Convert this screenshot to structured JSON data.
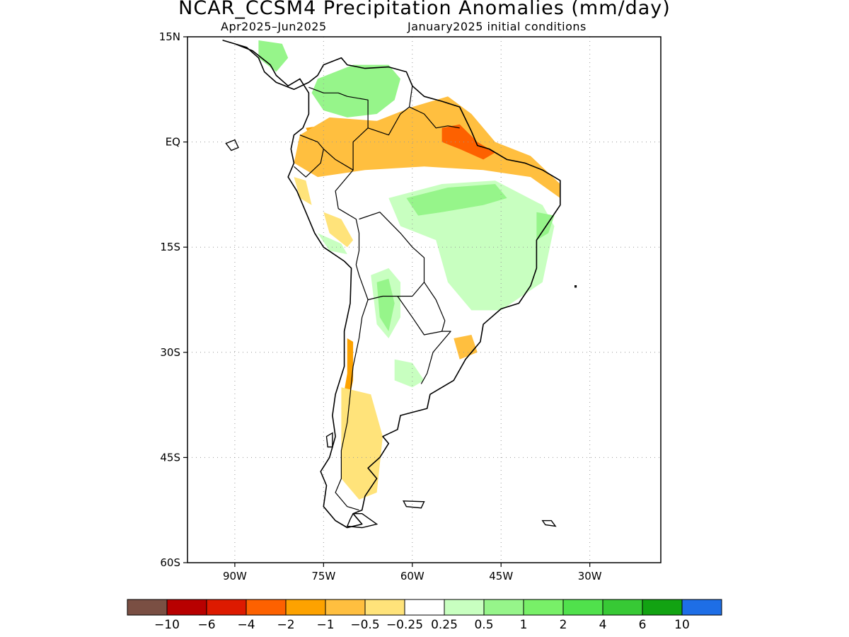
{
  "title": "NCAR_CCSM4 Precipitation Anomalies (mm/day)",
  "subtitle_left": "Apr2025–Jun2025",
  "subtitle_right": "January2025 initial conditions",
  "map": {
    "lon_range": [
      -98,
      -18
    ],
    "lat_range": [
      -60,
      15
    ],
    "grid": "dotted",
    "lat_ticks": [
      {
        "value": 15,
        "label": "15N"
      },
      {
        "value": 0,
        "label": "EQ"
      },
      {
        "value": -15,
        "label": "15S"
      },
      {
        "value": -30,
        "label": "30S"
      },
      {
        "value": -45,
        "label": "45S"
      },
      {
        "value": -60,
        "label": "60S"
      }
    ],
    "lon_ticks": [
      {
        "value": -90,
        "label": "90W"
      },
      {
        "value": -75,
        "label": "75W"
      },
      {
        "value": -60,
        "label": "60W"
      },
      {
        "value": -45,
        "label": "45W"
      },
      {
        "value": -30,
        "label": "30W"
      }
    ]
  },
  "colorbar": {
    "colors": [
      "#7a4f43",
      "#b80000",
      "#dd1a00",
      "#fd6100",
      "#fda200",
      "#ffbf3f",
      "#ffe37a",
      "#ffffff",
      "#c8ffc0",
      "#96f58a",
      "#78f068",
      "#50e14c",
      "#37c935",
      "#12a312",
      "#1e6ee6"
    ],
    "labels": [
      "−10",
      "−6",
      "−4",
      "−2",
      "−1",
      "−0.5",
      "−0.25",
      "0.25",
      "0.5",
      "1",
      "2",
      "4",
      "6",
      "10"
    ]
  },
  "anomaly_regions": [
    {
      "name": "venezuela-colombia-wet",
      "level": "2",
      "color": "#50e14c",
      "points": [
        [
          -75,
          8
        ],
        [
          -72,
          10
        ],
        [
          -68,
          10.5
        ],
        [
          -64,
          10
        ],
        [
          -63,
          7.5
        ],
        [
          -66,
          5
        ],
        [
          -70,
          4
        ],
        [
          -74,
          5
        ],
        [
          -76,
          6.5
        ]
      ]
    },
    {
      "name": "venezuela-moderate-wet",
      "level": "1",
      "color": "#96f58a",
      "points": [
        [
          -76,
          9
        ],
        [
          -70,
          11
        ],
        [
          -64,
          11
        ],
        [
          -62,
          9
        ],
        [
          -63,
          6
        ],
        [
          -66,
          4
        ],
        [
          -71,
          3.5
        ],
        [
          -75,
          4.5
        ],
        [
          -77,
          7
        ]
      ]
    },
    {
      "name": "central-america-wet",
      "level": "1",
      "color": "#96f58a",
      "points": [
        [
          -86,
          14.5
        ],
        [
          -82,
          14
        ],
        [
          -81,
          12
        ],
        [
          -83,
          10
        ],
        [
          -86,
          12
        ]
      ]
    },
    {
      "name": "amazon-dry",
      "level": "-1",
      "color": "#fda200",
      "points": [
        [
          -78,
          2
        ],
        [
          -70,
          3
        ],
        [
          -62,
          3
        ],
        [
          -56,
          6
        ],
        [
          -52,
          4.5
        ],
        [
          -49,
          1
        ],
        [
          -44,
          -2
        ],
        [
          -38,
          -4
        ],
        [
          -37,
          -5
        ],
        [
          -44,
          -4
        ],
        [
          -52,
          -2
        ],
        [
          -60,
          -2.5
        ],
        [
          -68,
          -3
        ],
        [
          -75,
          -3
        ]
      ]
    },
    {
      "name": "amazon-mild-dry",
      "level": "-0.5",
      "color": "#ffbf3f",
      "points": [
        [
          -79,
          1
        ],
        [
          -74,
          3.5
        ],
        [
          -66,
          3
        ],
        [
          -60,
          5
        ],
        [
          -54,
          6.5
        ],
        [
          -50,
          4
        ],
        [
          -46,
          0
        ],
        [
          -40,
          -2
        ],
        [
          -35,
          -6
        ],
        [
          -35,
          -8
        ],
        [
          -40,
          -5
        ],
        [
          -48,
          -4
        ],
        [
          -58,
          -3.5
        ],
        [
          -68,
          -4
        ],
        [
          -76,
          -5
        ],
        [
          -80,
          -3
        ]
      ]
    },
    {
      "name": "para-strong-dry",
      "level": "-4",
      "color": "#fd6100",
      "points": [
        [
          -55,
          2
        ],
        [
          -52,
          2.5
        ],
        [
          -49,
          0
        ],
        [
          -46,
          -1.5
        ],
        [
          -48,
          -2.5
        ],
        [
          -52,
          -1
        ],
        [
          -55,
          0
        ]
      ]
    },
    {
      "name": "brazil-interior-wet",
      "level": "0.5",
      "color": "#c8ffc0",
      "points": [
        [
          -64,
          -8
        ],
        [
          -55,
          -6
        ],
        [
          -46,
          -5.5
        ],
        [
          -38,
          -9
        ],
        [
          -36,
          -12
        ],
        [
          -38,
          -20
        ],
        [
          -45,
          -24
        ],
        [
          -50,
          -24
        ],
        [
          -54,
          -20
        ],
        [
          -56,
          -14
        ],
        [
          -62,
          -12
        ]
      ]
    },
    {
      "name": "brazil-core-wet",
      "level": "1",
      "color": "#96f58a",
      "points": [
        [
          -61,
          -8
        ],
        [
          -54,
          -6.5
        ],
        [
          -46,
          -6
        ],
        [
          -44,
          -8
        ],
        [
          -48,
          -9
        ],
        [
          -55,
          -10
        ],
        [
          -59,
          -10.5
        ]
      ]
    },
    {
      "name": "brazil-east-wet",
      "level": "1",
      "color": "#96f58a",
      "points": [
        [
          -39,
          -10
        ],
        [
          -36,
          -10.5
        ],
        [
          -37,
          -13
        ],
        [
          -39,
          -14
        ]
      ]
    },
    {
      "name": "bolivia-wet",
      "level": "0.5",
      "color": "#c8ffc0",
      "points": [
        [
          -67,
          -19
        ],
        [
          -64,
          -18
        ],
        [
          -62,
          -20
        ],
        [
          -62,
          -25
        ],
        [
          -64,
          -28
        ],
        [
          -66,
          -26
        ]
      ]
    },
    {
      "name": "chaco-wet",
      "level": "1",
      "color": "#96f58a",
      "points": [
        [
          -66,
          -20
        ],
        [
          -64,
          -19.5
        ],
        [
          -63,
          -23
        ],
        [
          -64,
          -27
        ],
        [
          -65.5,
          -25
        ]
      ]
    },
    {
      "name": "peru-mild-dry",
      "level": "-0.5",
      "color": "#ffe37a",
      "points": [
        [
          -75,
          -10
        ],
        [
          -72,
          -11
        ],
        [
          -70,
          -14
        ],
        [
          -71,
          -15
        ],
        [
          -74,
          -13
        ]
      ]
    },
    {
      "name": "peru-coast-dry",
      "level": "-0.5",
      "color": "#ffe37a",
      "points": [
        [
          -80,
          -5
        ],
        [
          -78,
          -5.5
        ],
        [
          -77,
          -9
        ],
        [
          -79,
          -8
        ]
      ]
    },
    {
      "name": "peru-wet",
      "level": "0.5",
      "color": "#c8ffc0",
      "points": [
        [
          -76,
          -13
        ],
        [
          -72,
          -14.5
        ],
        [
          -71,
          -16
        ],
        [
          -74,
          -15.5
        ]
      ]
    },
    {
      "name": "southern-brazil-dry",
      "level": "-0.5",
      "color": "#ffbf3f",
      "points": [
        [
          -53,
          -28
        ],
        [
          -50,
          -27.5
        ],
        [
          -49,
          -30
        ],
        [
          -52,
          -31
        ]
      ]
    },
    {
      "name": "pampas-wet",
      "level": "0.5",
      "color": "#c8ffc0",
      "points": [
        [
          -63,
          -31
        ],
        [
          -60,
          -31.5
        ],
        [
          -58,
          -34
        ],
        [
          -60,
          -35
        ],
        [
          -63,
          -34
        ]
      ]
    },
    {
      "name": "chile-dry",
      "level": "-1",
      "color": "#fda200",
      "points": [
        [
          -71,
          -28
        ],
        [
          -70,
          -28.5
        ],
        [
          -70,
          -34
        ],
        [
          -71.5,
          -40
        ],
        [
          -72,
          -38
        ],
        [
          -71,
          -33
        ]
      ]
    },
    {
      "name": "patagonia-mild-dry",
      "level": "-0.5",
      "color": "#ffbf3f",
      "points": [
        [
          -71,
          -37
        ],
        [
          -68,
          -39
        ],
        [
          -67,
          -46
        ],
        [
          -68,
          -50
        ],
        [
          -71,
          -49
        ],
        [
          -72,
          -43
        ]
      ]
    },
    {
      "name": "patagonia-dry",
      "level": "-0.25",
      "color": "#ffe37a",
      "points": [
        [
          -72,
          -35
        ],
        [
          -67,
          -36
        ],
        [
          -65,
          -42
        ],
        [
          -66,
          -50
        ],
        [
          -69,
          -51
        ],
        [
          -72,
          -48
        ]
      ]
    }
  ]
}
